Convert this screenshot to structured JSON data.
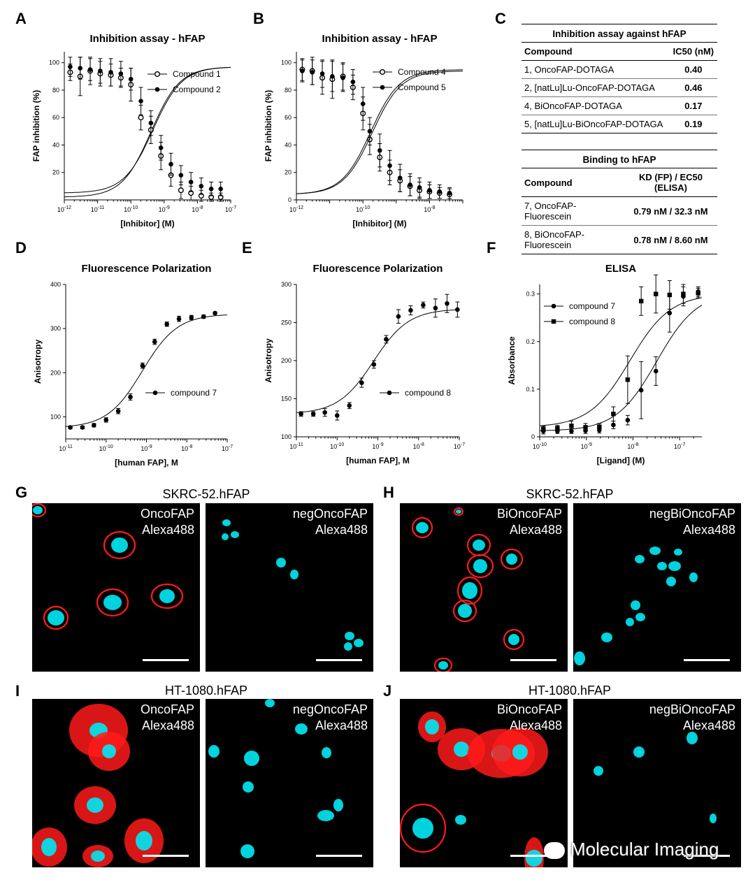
{
  "panels": {
    "A": "A",
    "B": "B",
    "C": "C",
    "D": "D",
    "E": "E",
    "F": "F",
    "G": "G",
    "H": "H",
    "I": "I",
    "J": "J"
  },
  "chart_data": [
    {
      "id": "A",
      "type": "scatter",
      "title": "Inhibition assay - hFAP",
      "xlabel": "[Inhibitor] (M)",
      "ylabel": "FAP inhibition (%)",
      "xscale": "log",
      "xlim": [
        1e-12,
        1e-07
      ],
      "ylim": [
        0,
        108
      ],
      "xticks": [
        "10-12",
        "10-11",
        "10-10",
        "10-9",
        "10-8",
        "10-7"
      ],
      "yticks": [
        20,
        40,
        60,
        80,
        100
      ],
      "legend_position": "top-right",
      "series": [
        {
          "name": "Compound 1",
          "marker": "open-circle",
          "x": [
            1.5e-12,
            3e-12,
            6e-12,
            1.2e-11,
            2.5e-11,
            5e-11,
            1e-10,
            2e-10,
            4e-10,
            8e-10,
            1.6e-09,
            3.2e-09,
            6.4e-09,
            1.3e-08,
            2.6e-08,
            5e-08
          ],
          "y": [
            93,
            90,
            94,
            92,
            91,
            89,
            84,
            60,
            51,
            32,
            18,
            7,
            5,
            3,
            2,
            2
          ],
          "err": [
            6,
            14,
            10,
            9,
            8,
            7,
            12,
            9,
            10,
            10,
            8,
            6,
            5,
            4,
            3,
            3
          ],
          "ic50": 4e-10,
          "top": 97,
          "bottom": 2
        },
        {
          "name": "Compound 2",
          "marker": "filled-circle",
          "x": [
            1.5e-12,
            3e-12,
            6e-12,
            1.2e-11,
            2.5e-11,
            5e-11,
            1e-10,
            2e-10,
            4e-10,
            8e-10,
            1.6e-09,
            3.2e-09,
            6.4e-09,
            1.3e-08,
            2.6e-08,
            5e-08
          ],
          "y": [
            97,
            96,
            95,
            94,
            93,
            92,
            88,
            72,
            56,
            38,
            26,
            18,
            13,
            10,
            8,
            8
          ],
          "err": [
            7,
            8,
            8,
            9,
            10,
            9,
            8,
            10,
            9,
            9,
            8,
            7,
            7,
            6,
            5,
            5
          ],
          "ic50": 4.6e-10,
          "top": 97,
          "bottom": 5
        }
      ]
    },
    {
      "id": "B",
      "type": "scatter",
      "title": "Inhibition assay - hFAP",
      "xlabel": "[Inhibitor] (M)",
      "ylabel": "FAP inhibition (%)",
      "xscale": "log",
      "xlim": [
        1e-12,
        1e-07
      ],
      "ylim": [
        0,
        108
      ],
      "xticks": [
        "10-12",
        "10-10",
        "10-8"
      ],
      "yticks": [
        0,
        20,
        40,
        60,
        80,
        100
      ],
      "legend_position": "top-right",
      "series": [
        {
          "name": "Compound 4",
          "marker": "open-circle",
          "x": [
            1.5e-12,
            3e-12,
            6e-12,
            1.2e-11,
            2.5e-11,
            5e-11,
            1e-10,
            1.6e-10,
            3.2e-10,
            6.4e-10,
            1.3e-09,
            2.6e-09,
            5e-09,
            1e-08,
            2e-08,
            4e-08
          ],
          "y": [
            95,
            94,
            89,
            88,
            90,
            82,
            63,
            44,
            31,
            20,
            14,
            10,
            7,
            6,
            5,
            4
          ],
          "err": [
            8,
            10,
            12,
            14,
            10,
            9,
            12,
            11,
            10,
            9,
            8,
            7,
            6,
            5,
            4,
            4
          ],
          "ic50": 1.7e-10,
          "top": 95,
          "bottom": 4
        },
        {
          "name": "Compound 5",
          "marker": "filled-circle",
          "x": [
            1.5e-12,
            3e-12,
            6e-12,
            1.2e-11,
            2.5e-11,
            5e-11,
            1e-10,
            1.6e-10,
            3.2e-10,
            6.4e-10,
            1.3e-09,
            2.6e-09,
            5e-09,
            1e-08,
            2e-08,
            4e-08
          ],
          "y": [
            94,
            93,
            92,
            90,
            89,
            86,
            70,
            50,
            36,
            25,
            16,
            11,
            9,
            7,
            6,
            5
          ],
          "err": [
            8,
            9,
            10,
            11,
            10,
            9,
            12,
            10,
            12,
            11,
            10,
            8,
            7,
            6,
            5,
            4
          ],
          "ic50": 1.9e-10,
          "top": 94,
          "bottom": 4
        }
      ]
    },
    {
      "id": "D",
      "type": "scatter",
      "title": "Fluorescence Polarization",
      "xlabel": "[human FAP], M",
      "ylabel": "Anisotropy",
      "xscale": "log",
      "xlim": [
        1e-11,
        1e-07
      ],
      "ylim": [
        50,
        400
      ],
      "xticks": [
        "10-11",
        "10-10",
        "10-9",
        "10-8",
        "10-7"
      ],
      "yticks": [
        100,
        200,
        300,
        400
      ],
      "legend_position": "center-right",
      "series": [
        {
          "name": "compound 7",
          "marker": "filled-circle",
          "x": [
            1.3e-11,
            2.6e-11,
            5e-11,
            1e-10,
            2e-10,
            4e-10,
            8e-10,
            1.6e-09,
            3.2e-09,
            6.4e-09,
            1.3e-08,
            2.6e-08,
            5e-08
          ],
          "y": [
            76,
            76,
            81,
            93,
            113,
            145,
            216,
            270,
            310,
            322,
            325,
            327,
            335
          ],
          "err": [
            3,
            3,
            4,
            5,
            6,
            7,
            6,
            6,
            5,
            6,
            5,
            4,
            3
          ],
          "kd": 7.9e-10,
          "top": 333,
          "bottom": 75
        }
      ]
    },
    {
      "id": "E",
      "type": "scatter",
      "title": "Fluorescence Polarization",
      "xlabel": "[human FAP], M",
      "ylabel": "Anisotropy",
      "xscale": "log",
      "xlim": [
        1e-11,
        1e-07
      ],
      "ylim": [
        100,
        300
      ],
      "xticks": [
        "10-11",
        "10-10",
        "10-9",
        "10-8",
        "10-7"
      ],
      "yticks": [
        100,
        150,
        200,
        250,
        300
      ],
      "legend_position": "center-right",
      "series": [
        {
          "name": "compound 8",
          "marker": "filled-circle",
          "x": [
            1.3e-11,
            2.6e-11,
            5e-11,
            1e-10,
            2e-10,
            4e-10,
            8e-10,
            1.6e-09,
            3.2e-09,
            6.4e-09,
            1.3e-08,
            2.6e-08,
            5e-08,
            9e-08
          ],
          "y": [
            130,
            130,
            132,
            128,
            141,
            171,
            195,
            228,
            258,
            266,
            273,
            269,
            275,
            267
          ],
          "err": [
            3,
            3,
            5,
            6,
            4,
            6,
            5,
            5,
            9,
            6,
            4,
            12,
            12,
            10
          ],
          "kd": 7.8e-10,
          "top": 268,
          "bottom": 130
        }
      ]
    },
    {
      "id": "F",
      "type": "scatter",
      "title": "ELISA",
      "xlabel": "[Ligand] (M)",
      "ylabel": "Absorbance",
      "xscale": "log",
      "xlim": [
        1e-10,
        3e-07
      ],
      "ylim": [
        0,
        0.32
      ],
      "xticks": [
        "10-10",
        "10-9",
        "10-8",
        "10-7"
      ],
      "yticks": [
        0.0,
        0.1,
        0.2,
        0.3
      ],
      "legend_position": "top-left",
      "series": [
        {
          "name": "compound 7",
          "marker": "filled-circle",
          "x": [
            1.2e-10,
            2.4e-10,
            4.8e-10,
            9.6e-10,
            1.9e-09,
            3.8e-09,
            7.7e-09,
            1.5e-08,
            3.1e-08,
            6.1e-08,
            1.2e-07,
            2.5e-07
          ],
          "y": [
            0.012,
            0.012,
            0.012,
            0.013,
            0.014,
            0.025,
            0.035,
            0.098,
            0.138,
            0.26,
            0.295,
            0.305
          ],
          "err": [
            0.006,
            0.005,
            0.005,
            0.006,
            0.006,
            0.008,
            0.01,
            0.06,
            0.03,
            0.04,
            0.02,
            0.01
          ],
          "ec50": 3.23e-08,
          "top": 0.305,
          "bottom": 0.012
        },
        {
          "name": "compound 8",
          "marker": "filled-square",
          "x": [
            1.2e-10,
            2.4e-10,
            4.8e-10,
            9.6e-10,
            1.9e-09,
            3.8e-09,
            7.7e-09,
            1.5e-08,
            3.1e-08,
            6.1e-08,
            1.2e-07,
            2.5e-07
          ],
          "y": [
            0.017,
            0.018,
            0.023,
            0.02,
            0.021,
            0.048,
            0.12,
            0.285,
            0.3,
            0.298,
            0.3,
            0.302
          ],
          "err": [
            0.006,
            0.006,
            0.01,
            0.008,
            0.007,
            0.015,
            0.05,
            0.03,
            0.04,
            0.03,
            0.02,
            0.01
          ],
          "ec50": 8.6e-09,
          "top": 0.3,
          "bottom": 0.02
        }
      ]
    }
  ],
  "tables": {
    "ic50": {
      "caption": "Inhibition assay against hFAP",
      "col1": "Compound",
      "col2": "IC50 (nM)",
      "rows": [
        {
          "compound": "1, OncoFAP-DOTAGA",
          "value": "0.40"
        },
        {
          "compound": "2, [natLu]Lu-OncoFAP-DOTAGA",
          "value": "0.46"
        },
        {
          "compound": "4, BiOncoFAP-DOTAGA",
          "value": "0.17"
        },
        {
          "compound": "5, [natLu]Lu-BiOncoFAP-DOTAGA",
          "value": "0.19"
        }
      ]
    },
    "binding": {
      "caption": "Binding to hFAP",
      "col1": "Compound",
      "col2": "KD (FP) / EC50 (ELISA)",
      "rows": [
        {
          "compound": "7, OncoFAP-Fluorescein",
          "value": "0.79 nM / 32.3 nM"
        },
        {
          "compound": "8, BiOncoFAP-Fluorescein",
          "value": "0.78 nM / 8.60 nM"
        }
      ]
    }
  },
  "microscopy": {
    "G": {
      "title": "SKRC-52.hFAP",
      "left": [
        "OncoFAP",
        "Alexa488"
      ],
      "right": [
        "negOncoFAP",
        "Alexa488"
      ]
    },
    "H": {
      "title": "SKRC-52.hFAP",
      "left": [
        "BiOncoFAP",
        "Alexa488"
      ],
      "right": [
        "negBiOncoFAP",
        "Alexa488"
      ]
    },
    "I": {
      "title": "HT-1080.hFAP",
      "left": [
        "OncoFAP",
        "Alexa488"
      ],
      "right": [
        "negOncoFAP",
        "Alexa488"
      ]
    },
    "J": {
      "title": "HT-1080.hFAP",
      "left": [
        "BiOncoFAP",
        "Alexa488"
      ],
      "right": [
        "negBiOncoFAP",
        "Alexa488"
      ]
    }
  },
  "watermark": "Molecular Imaging",
  "colors": {
    "nucleus": "#00e5f0",
    "membrane": "#ff1a1a",
    "background": "#000000"
  }
}
